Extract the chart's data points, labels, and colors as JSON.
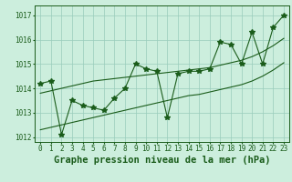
{
  "title": "Graphe pression niveau de la mer (hPa)",
  "x_labels": [
    "0",
    "1",
    "2",
    "3",
    "4",
    "5",
    "6",
    "7",
    "8",
    "9",
    "10",
    "11",
    "12",
    "13",
    "14",
    "15",
    "16",
    "17",
    "18",
    "19",
    "20",
    "21",
    "22",
    "23"
  ],
  "hours": [
    0,
    1,
    2,
    3,
    4,
    5,
    6,
    7,
    8,
    9,
    10,
    11,
    12,
    13,
    14,
    15,
    16,
    17,
    18,
    19,
    20,
    21,
    22,
    23
  ],
  "pressure": [
    1014.2,
    1014.3,
    1012.1,
    1013.5,
    1013.3,
    1013.2,
    1013.1,
    1013.6,
    1014.0,
    1015.0,
    1014.8,
    1014.7,
    1012.8,
    1014.6,
    1014.7,
    1014.7,
    1014.8,
    1015.9,
    1015.8,
    1015.0,
    1016.3,
    1015.0,
    1016.5,
    1017.0
  ],
  "trend_upper": [
    1013.8,
    1013.9,
    1014.0,
    1014.1,
    1014.2,
    1014.3,
    1014.35,
    1014.4,
    1014.45,
    1014.5,
    1014.55,
    1014.6,
    1014.65,
    1014.7,
    1014.75,
    1014.8,
    1014.85,
    1014.95,
    1015.05,
    1015.15,
    1015.3,
    1015.5,
    1015.75,
    1016.05
  ],
  "trend_lower": [
    1012.3,
    1012.4,
    1012.5,
    1012.6,
    1012.7,
    1012.8,
    1012.9,
    1013.0,
    1013.1,
    1013.2,
    1013.3,
    1013.4,
    1013.5,
    1013.6,
    1013.7,
    1013.75,
    1013.85,
    1013.95,
    1014.05,
    1014.15,
    1014.3,
    1014.5,
    1014.75,
    1015.05
  ],
  "ylim": [
    1011.8,
    1017.4
  ],
  "yticks": [
    1012,
    1013,
    1014,
    1015,
    1016,
    1017
  ],
  "line_color": "#1a5c1a",
  "bg_color": "#cceedd",
  "grid_color": "#99ccbb",
  "text_color": "#1a5c1a",
  "marker": "*",
  "marker_size": 4,
  "title_fontsize": 7.5,
  "tick_fontsize": 5.5
}
